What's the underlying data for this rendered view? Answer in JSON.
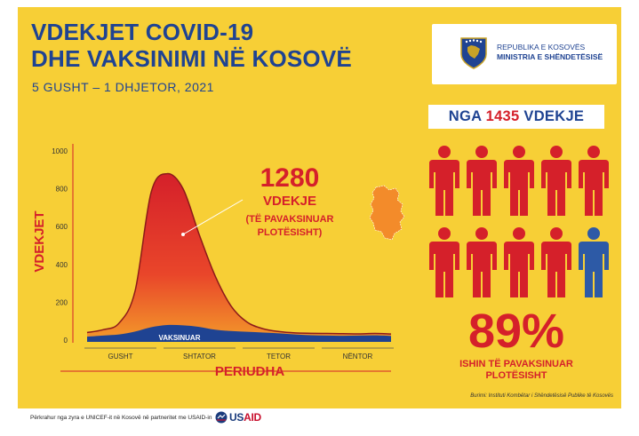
{
  "header": {
    "title_line1": "VDEKJET COVID-19",
    "title_line2": "DHE VAKSINIMI NË KOSOVË",
    "date_range": "5 GUSHT – 1 DHJETOR, 2021"
  },
  "ministry": {
    "line1": "REPUBLIKA E KOSOVËS",
    "line2": "MINISTRIA E SHËNDETËSISË"
  },
  "summary": {
    "prefix": "NGA",
    "total": "1435",
    "suffix": "VDEKJE",
    "percent": "89%",
    "percent_caption_line1": "ISHIN TË PAVAKSINUAR",
    "percent_caption_line2": "PLOTËSISHT",
    "people_total": 10,
    "people_unvaccinated": 9
  },
  "annotation": {
    "number": "1280",
    "label": "VDEKJE",
    "detail_line1": "(TË PAVAKSINUAR",
    "detail_line2": "PLOTËSISHT)"
  },
  "source": "Burimi: Instituti Kombëtar i Shëndetësisë Publike të Kosovës",
  "footer": {
    "text": "Përkrahur nga zyra e UNICEF-it në Kosovë në partneritet me USAID-in",
    "usaid_left": "US",
    "usaid_right": "AID"
  },
  "colors": {
    "navy": "#1f4392",
    "red": "#d5202a",
    "yellow": "#f7cf36",
    "orange": "#f38b2a",
    "person_red": "#d5202a",
    "person_blue": "#2d5aa6"
  },
  "chart_data": {
    "type": "area",
    "xlabel": "PERIUDHA",
    "ylabel": "VDEKJET",
    "ylim": [
      0,
      1000
    ],
    "yticks": [
      0,
      200,
      400,
      600,
      800,
      1000
    ],
    "periods": [
      "GUSHT",
      "SHTATOR",
      "TETOR",
      "NËNTOR"
    ],
    "series": [
      {
        "name": "",
        "values": [
          40,
          55,
          90,
          260,
          780,
          880,
          800,
          560,
          340,
          180,
          95,
          60,
          45,
          38,
          36,
          35,
          34,
          33,
          35,
          32
        ]
      },
      {
        "name": "VAKSINUAR",
        "values": [
          18,
          24,
          30,
          45,
          68,
          80,
          78,
          70,
          55,
          48,
          44,
          40,
          36,
          30,
          26,
          24,
          23,
          24,
          25,
          22
        ]
      }
    ]
  }
}
